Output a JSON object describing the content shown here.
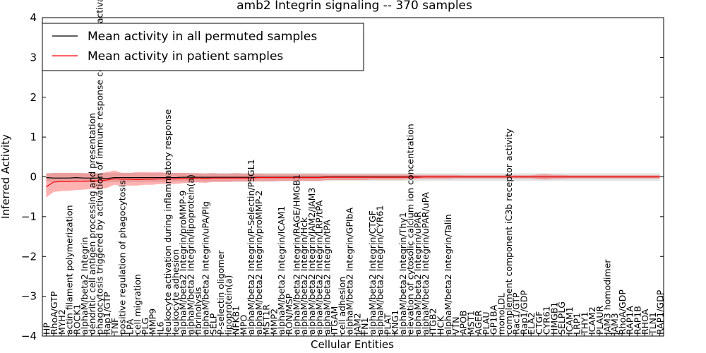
{
  "chart_data": {
    "type": "line",
    "title": "amb2 Integrin signaling -- 370 samples",
    "xlabel": "Cellular Entities",
    "ylabel": "Inferred Activity",
    "ylim": [
      -4,
      4
    ],
    "yticks": [
      -4,
      -3,
      -2,
      -1,
      0,
      1,
      2,
      3,
      4
    ],
    "legend": {
      "position": "top-left",
      "entries": [
        {
          "label": "Mean activity in all permuted samples",
          "color": "#000000"
        },
        {
          "label": "Mean activity in patient samples",
          "color": "#ff0000"
        }
      ]
    },
    "categories": [
      "HP",
      "RhoA/GTP",
      "MYH2",
      "actin filament polymerization",
      "ROCK1",
      "alphaM/beta2 Integrin",
      "dendritic cell antigen processing and presentation",
      "phagocytosis triggered by activation of immune response cell surface activating receptor",
      "Rap1/GTP",
      "TNF",
      "positive regulation of phagocytosis",
      "LPA",
      "cell migration",
      "PLG",
      "MMP9",
      "IL6",
      "leukocyte activation during inflammatory response",
      "leukocyte adhesion",
      "alphaM/beta2 Integrin/proMMP-9",
      "alphaM/beta2 Integrin/lipoprotein(a)",
      "fibrinolysis",
      "alphaM/beta2 Integrin/uPA/Plg",
      "SELP",
      "P-selectin oligomer",
      "lipoprotein(a)",
      "NFKB1",
      "MPO",
      "alphaM/beta2 Integrin/P-Selectin/PSGL1",
      "alphaM/beta2 Integrin/proMMP-2",
      "MST1R",
      "MMP2",
      "alphaM/beta2 Integrin/ICAM1",
      "RON/MSP",
      "alphaM/beta2 Integrin/RAGE/HMGB1",
      "alphaM/beta2 Integrin/Hck",
      "alphaM/beta2 Integrin/JAM2/JAM3",
      "alphaM/beta2 Integrin/LRP/tPA",
      "alphaM/beta2 Integrin/tPA",
      "ITGAM",
      "cell adhesion",
      "alphaM/beta2 Integrin/GPIbA",
      "JAM2",
      "FN1",
      "alphaM/beta2 Integrin/CTGF",
      "alphaM/beta2 Integrin/CYR61",
      "PLAT",
      "KNG1",
      "alphaM/beta2 Integrin/Thy1",
      "elevation of cytosolic calcium ion concentration",
      "alphaM/beta2 Integrin/uPAR",
      "alphaM/beta2 Integrin/uPAR/uPA",
      "ITGB2",
      "HCK",
      "alphaM/beta2 Integrin/Talin",
      "VTN",
      "APOB",
      "MST1",
      "AGER",
      "PLAU",
      "GP1BA",
      "monoLDL",
      "complement component iC3b receptor activity",
      "Rac1/GTP",
      "Rap1/GDP",
      "ELA2",
      "CTGF",
      "CYR61",
      "HMGB1",
      "SELPLG",
      "ICAM1",
      "LRP1",
      "THY1",
      "ICAM2",
      "PLAUR",
      "JAM3 homodimer",
      "JAM3",
      "RhoA/GDP",
      "RAP1A",
      "RAP1B",
      "RHOA",
      "TLN1",
      "RAP1/GDP"
    ],
    "series": [
      {
        "name": "Mean activity in all permuted samples",
        "color": "#000000",
        "values": [
          -0.02,
          -0.03,
          -0.03,
          -0.03,
          -0.02,
          -0.03,
          -0.03,
          -0.03,
          -0.04,
          -0.02,
          -0.02,
          -0.02,
          -0.02,
          -0.02,
          -0.02,
          -0.02,
          -0.02,
          -0.02,
          -0.01,
          -0.01,
          -0.01,
          -0.01,
          -0.01,
          -0.01,
          -0.01,
          -0.01,
          -0.01,
          -0.01,
          -0.01,
          -0.01,
          -0.01,
          -0.01,
          -0.01,
          -0.01,
          -0.01,
          -0.01,
          -0.01,
          0,
          0,
          0,
          0,
          0,
          0,
          0,
          0,
          0,
          0,
          0,
          0,
          0,
          0,
          0,
          0,
          0,
          0,
          0,
          0,
          0,
          0,
          0,
          0,
          0,
          0,
          0,
          0,
          0,
          0,
          0,
          0,
          0,
          0,
          0,
          0,
          0,
          0,
          0,
          0,
          0,
          0,
          0,
          0,
          0
        ],
        "band_low": [
          -0.12,
          -0.13,
          -0.13,
          -0.13,
          -0.13,
          -0.13,
          -0.13,
          -0.13,
          -0.13,
          -0.13,
          -0.13,
          -0.13,
          -0.13,
          -0.13,
          -0.13,
          -0.13,
          -0.13,
          -0.12,
          -0.12,
          -0.12,
          -0.12,
          -0.12,
          -0.12,
          -0.12,
          -0.12,
          -0.12,
          -0.12,
          -0.12,
          -0.12,
          -0.12,
          -0.12,
          -0.11,
          -0.11,
          -0.11,
          -0.11,
          -0.11,
          -0.11,
          -0.11,
          -0.1,
          -0.1,
          -0.1,
          -0.1,
          -0.1,
          -0.1,
          -0.1,
          -0.1,
          -0.1,
          -0.1,
          -0.1,
          -0.1,
          -0.1,
          -0.1,
          -0.1,
          -0.1,
          -0.1,
          -0.1,
          -0.1,
          -0.1,
          -0.1,
          -0.1,
          -0.1,
          -0.1,
          -0.1,
          -0.1,
          -0.1,
          -0.1,
          -0.1,
          -0.1,
          -0.1,
          -0.1,
          -0.1,
          -0.1,
          -0.1,
          -0.1,
          -0.1,
          -0.1,
          -0.1,
          -0.1,
          -0.1,
          -0.1,
          -0.1,
          -0.1
        ],
        "band_high": [
          0.1,
          0.1,
          0.1,
          0.1,
          0.1,
          0.1,
          0.1,
          0.1,
          0.1,
          0.1,
          0.1,
          0.1,
          0.1,
          0.1,
          0.1,
          0.1,
          0.1,
          0.1,
          0.1,
          0.1,
          0.1,
          0.1,
          0.1,
          0.1,
          0.1,
          0.1,
          0.1,
          0.1,
          0.1,
          0.1,
          0.1,
          0.1,
          0.1,
          0.1,
          0.1,
          0.1,
          0.1,
          0.1,
          0.09,
          0.09,
          0.09,
          0.09,
          0.09,
          0.09,
          0.09,
          0.09,
          0.09,
          0.09,
          0.09,
          0.09,
          0.09,
          0.09,
          0.09,
          0.09,
          0.09,
          0.09,
          0.09,
          0.09,
          0.09,
          0.09,
          0.09,
          0.09,
          0.09,
          0.09,
          0.09,
          0.09,
          0.09,
          0.09,
          0.09,
          0.09,
          0.09,
          0.09,
          0.09,
          0.09,
          0.09,
          0.09,
          0.09,
          0.09,
          0.09,
          0.09,
          0.09,
          0.09
        ]
      },
      {
        "name": "Mean activity in patient samples",
        "color": "#ff0000",
        "values": [
          -0.25,
          -0.13,
          -0.12,
          -0.12,
          -0.11,
          -0.11,
          -0.1,
          -0.1,
          -0.08,
          -0.05,
          -0.06,
          -0.06,
          -0.07,
          -0.06,
          -0.06,
          -0.05,
          -0.05,
          -0.05,
          -0.04,
          -0.04,
          -0.03,
          -0.04,
          -0.03,
          -0.03,
          -0.03,
          -0.03,
          -0.03,
          -0.03,
          -0.02,
          -0.02,
          -0.02,
          -0.02,
          -0.02,
          -0.02,
          -0.02,
          -0.02,
          -0.02,
          -0.01,
          -0.01,
          -0.01,
          -0.01,
          -0.01,
          -0.01,
          -0.01,
          -0.01,
          -0.01,
          -0.01,
          -0.01,
          -0.01,
          -0.01,
          0,
          0,
          0,
          0,
          0,
          0,
          0,
          0,
          0,
          0,
          0,
          0,
          0,
          0,
          0,
          0,
          0,
          0,
          0,
          0,
          0,
          0,
          0,
          0,
          0,
          0,
          0,
          0,
          0,
          0,
          0,
          0
        ],
        "band_low": [
          -0.52,
          -0.38,
          -0.36,
          -0.35,
          -0.33,
          -0.32,
          -0.3,
          -0.3,
          -0.28,
          -0.2,
          -0.22,
          -0.22,
          -0.22,
          -0.2,
          -0.2,
          -0.18,
          -0.18,
          -0.18,
          -0.16,
          -0.15,
          -0.14,
          -0.15,
          -0.13,
          -0.13,
          -0.13,
          -0.12,
          -0.12,
          -0.12,
          -0.11,
          -0.11,
          -0.11,
          -0.1,
          -0.1,
          -0.1,
          -0.1,
          -0.1,
          -0.1,
          -0.08,
          -0.08,
          -0.08,
          -0.08,
          -0.08,
          -0.08,
          -0.07,
          -0.07,
          -0.07,
          -0.07,
          -0.07,
          -0.06,
          -0.06,
          -0.05,
          -0.05,
          -0.05,
          -0.05,
          -0.04,
          -0.04,
          -0.04,
          -0.04,
          -0.04,
          -0.04,
          -0.04,
          -0.04,
          -0.04,
          -0.04,
          -0.04,
          -0.06,
          -0.07,
          -0.05,
          -0.05,
          -0.04,
          -0.04,
          -0.04,
          -0.04,
          -0.04,
          -0.04,
          -0.04,
          -0.04,
          -0.04,
          -0.04,
          -0.04,
          -0.04,
          -0.04
        ],
        "band_high": [
          0.08,
          0.1,
          0.1,
          0.1,
          0.1,
          0.09,
          0.09,
          0.08,
          0.12,
          0.16,
          0.1,
          0.1,
          0.12,
          0.12,
          0.11,
          0.12,
          0.1,
          0.1,
          0.1,
          0.09,
          0.09,
          0.08,
          0.09,
          0.08,
          0.08,
          0.09,
          0.08,
          0.08,
          0.08,
          0.07,
          0.07,
          0.07,
          0.07,
          0.07,
          0.07,
          0.07,
          0.07,
          0.06,
          0.06,
          0.06,
          0.06,
          0.06,
          0.06,
          0.06,
          0.06,
          0.06,
          0.06,
          0.06,
          0.06,
          0.05,
          0.05,
          0.05,
          0.05,
          0.05,
          0.05,
          0.04,
          0.04,
          0.04,
          0.04,
          0.04,
          0.04,
          0.04,
          0.04,
          0.04,
          0.04,
          0.06,
          0.07,
          0.05,
          0.05,
          0.04,
          0.04,
          0.04,
          0.04,
          0.04,
          0.04,
          0.04,
          0.04,
          0.04,
          0.04,
          0.04,
          0.04,
          0.04
        ]
      }
    ]
  }
}
